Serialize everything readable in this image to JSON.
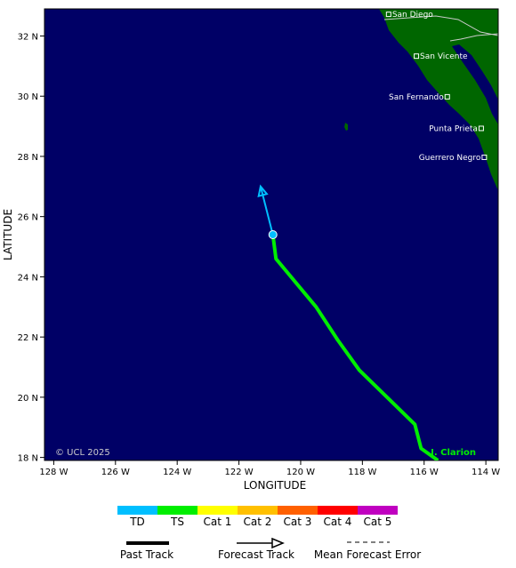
{
  "map": {
    "axes": {
      "x_title": "LONGITUDE",
      "y_title": "LATITUDE",
      "x_ticks": [
        {
          "value": -128,
          "label": "128 W"
        },
        {
          "value": -126,
          "label": "126 W"
        },
        {
          "value": -124,
          "label": "124 W"
        },
        {
          "value": -122,
          "label": "122 W"
        },
        {
          "value": -120,
          "label": "120 W"
        },
        {
          "value": -118,
          "label": "118 W"
        },
        {
          "value": -116,
          "label": "116 W"
        },
        {
          "value": -114,
          "label": "114 W"
        }
      ],
      "y_ticks": [
        {
          "value": 32,
          "label": "32 N"
        },
        {
          "value": 30,
          "label": "30 N"
        },
        {
          "value": 28,
          "label": "28 N"
        },
        {
          "value": 26,
          "label": "26 N"
        },
        {
          "value": 24,
          "label": "24 N"
        },
        {
          "value": 22,
          "label": "22 N"
        },
        {
          "value": 20,
          "label": "20 N"
        },
        {
          "value": 18,
          "label": "18 N"
        }
      ],
      "lon_range": [
        -128.3,
        -113.6
      ],
      "lat_range": [
        17.9,
        32.9
      ]
    },
    "copyright": "© UCL 2025",
    "storm_label": "I. Clarion",
    "cities": [
      {
        "name": "San Diego",
        "lon": -117.15,
        "lat": 32.72,
        "label_side": "right"
      },
      {
        "name": "San Vicente",
        "lon": -116.25,
        "lat": 31.33,
        "label_side": "right"
      },
      {
        "name": "San Fernando",
        "lon": -115.25,
        "lat": 29.98,
        "label_side": "left"
      },
      {
        "name": "Punta Prieta",
        "lon": -114.15,
        "lat": 28.93,
        "label_side": "left"
      },
      {
        "name": "Guerrero Negro",
        "lon": -114.05,
        "lat": 27.97,
        "label_side": "left"
      }
    ],
    "past_track": {
      "category": "TS",
      "points": [
        [
          -115.55,
          17.9
        ],
        [
          -116.1,
          18.3
        ],
        [
          -116.3,
          19.1
        ],
        [
          -118.1,
          20.9
        ],
        [
          -118.8,
          21.9
        ],
        [
          -119.5,
          23.0
        ],
        [
          -120.8,
          24.6
        ],
        [
          -120.9,
          25.4
        ]
      ]
    },
    "forecast_track": {
      "category": "TD",
      "points": [
        [
          -120.9,
          25.4
        ],
        [
          -121.3,
          27.0
        ]
      ]
    },
    "current_position": {
      "lon": -120.9,
      "lat": 25.4,
      "category": "TD"
    }
  },
  "colors": {
    "ocean": "#000066",
    "land": "#006600",
    "country_border": "#cccccc",
    "TD": "#00bfff",
    "TS": "#00ee00",
    "Cat 1": "#ffff00",
    "Cat 2": "#ffc000",
    "Cat 3": "#ff6000",
    "Cat 4": "#ff0000",
    "Cat 5": "#c000c0"
  },
  "legend": {
    "categories": [
      "TD",
      "TS",
      "Cat 1",
      "Cat 2",
      "Cat 3",
      "Cat 4",
      "Cat 5"
    ],
    "past_track_label": "Past Track",
    "forecast_track_label": "Forecast Track",
    "mean_error_label": "Mean Forecast Error"
  }
}
